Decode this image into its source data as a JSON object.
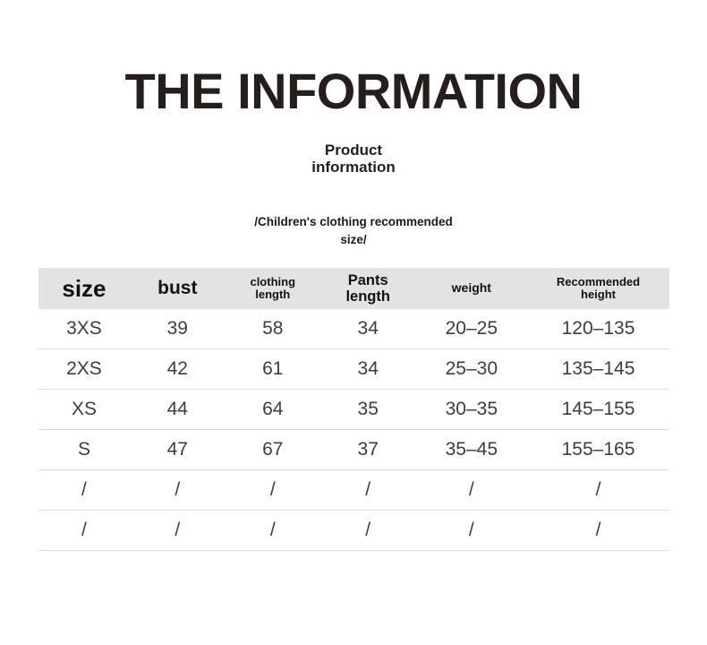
{
  "page": {
    "title": "THE INFORMATION",
    "subtitle": "Product\ninformation",
    "tagline": "/Children's clothing recommended\nsize/"
  },
  "table": {
    "columns": [
      {
        "id": "size",
        "label": "size"
      },
      {
        "id": "bust",
        "label": "bust"
      },
      {
        "id": "clothing-length",
        "label": "clothing\nlength"
      },
      {
        "id": "pants-length",
        "label": "Pants\nlength"
      },
      {
        "id": "weight",
        "label": "weight"
      },
      {
        "id": "recommended-height",
        "label": "Recommended\nheight"
      }
    ],
    "rows": [
      {
        "cells": [
          "3XS",
          "39",
          "58",
          "34",
          "20–25",
          "120–135"
        ]
      },
      {
        "cells": [
          "2XS",
          "42",
          "61",
          "34",
          "25–30",
          "135–145"
        ]
      },
      {
        "cells": [
          "XS",
          "44",
          "64",
          "35",
          "30–35",
          "145–155"
        ]
      },
      {
        "cells": [
          "S",
          "47",
          "67",
          "37",
          "35–45",
          "155–165"
        ]
      },
      {
        "cells": [
          "/",
          "/",
          "/",
          "/",
          "/",
          "/"
        ]
      },
      {
        "cells": [
          "/",
          "/",
          "/",
          "/",
          "/",
          "/"
        ]
      }
    ]
  },
  "colors": {
    "header_bg": "#e3e3e3",
    "row_separator": "#dcdcdc",
    "title_text": "#251e1b",
    "body_text": "#3d3d3d"
  }
}
